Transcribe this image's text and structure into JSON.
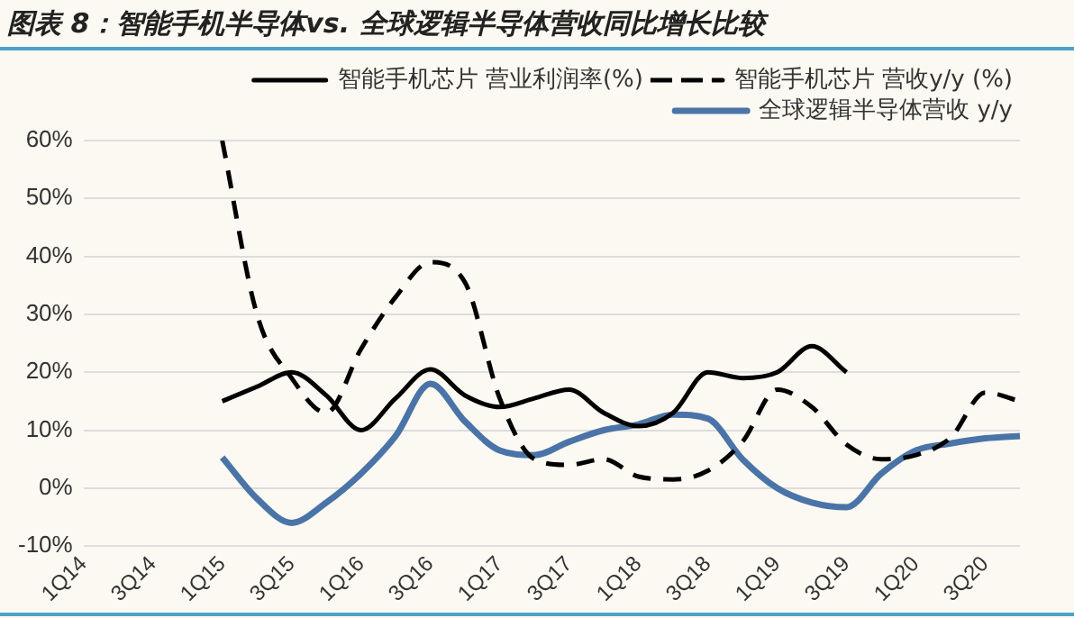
{
  "chart_data": {
    "type": "line",
    "title": "图表 8：智能手机半导体vs. 全球逻辑半导体营收同比增长比较",
    "categories": [
      "1Q14",
      null,
      "3Q14",
      null,
      "1Q15",
      null,
      "3Q15",
      null,
      "1Q16",
      null,
      "3Q16",
      null,
      "1Q17",
      null,
      "3Q17",
      null,
      "1Q18",
      null,
      "3Q18",
      null,
      "1Q19",
      null,
      "3Q19",
      null,
      "1Q20",
      null,
      "3Q20",
      null
    ],
    "series": [
      {
        "name": "智能手机芯片 营业利润率(%)",
        "color": "#000000",
        "line_style": "solid",
        "values": [
          null,
          null,
          null,
          null,
          15,
          17.5,
          20,
          16,
          10,
          15.5,
          20.5,
          16,
          14,
          15.5,
          17,
          13,
          10.7,
          13,
          20,
          19,
          20,
          24.5,
          20,
          null,
          null,
          null,
          null,
          null
        ]
      },
      {
        "name": "智能手机芯片 营收y/y (%)",
        "color": "#000000",
        "line_style": "dashed",
        "values": [
          null,
          null,
          null,
          null,
          60,
          30,
          19,
          13,
          24,
          33,
          39,
          35.5,
          15.5,
          5,
          4,
          5,
          2,
          1.5,
          3,
          8,
          17,
          14,
          7.5,
          5,
          5.7,
          8.7,
          16.5,
          15
        ]
      },
      {
        "name": "全球逻辑半导体营收 y/y",
        "color": "#4a74a8",
        "line_style": "solid",
        "values": [
          null,
          null,
          null,
          null,
          5.3,
          -1.8,
          -6,
          -2.5,
          2.5,
          9,
          18,
          11.5,
          6.5,
          5.7,
          8,
          10,
          11,
          12.7,
          12,
          5,
          0,
          -2.5,
          -3.3,
          2.5,
          6.5,
          7.7,
          8.6,
          9
        ]
      }
    ],
    "ylim": [
      -10,
      60
    ],
    "yticks": [
      {
        "value": -10,
        "label": "-10%"
      },
      {
        "value": 0,
        "label": "0%"
      },
      {
        "value": 10,
        "label": "10%"
      },
      {
        "value": 20,
        "label": "20%"
      },
      {
        "value": 30,
        "label": "30%"
      },
      {
        "value": 40,
        "label": "40%"
      },
      {
        "value": 50,
        "label": "50%"
      },
      {
        "value": 60,
        "label": "60%"
      }
    ],
    "grid": "y",
    "legend": "top right",
    "marker": "none"
  }
}
